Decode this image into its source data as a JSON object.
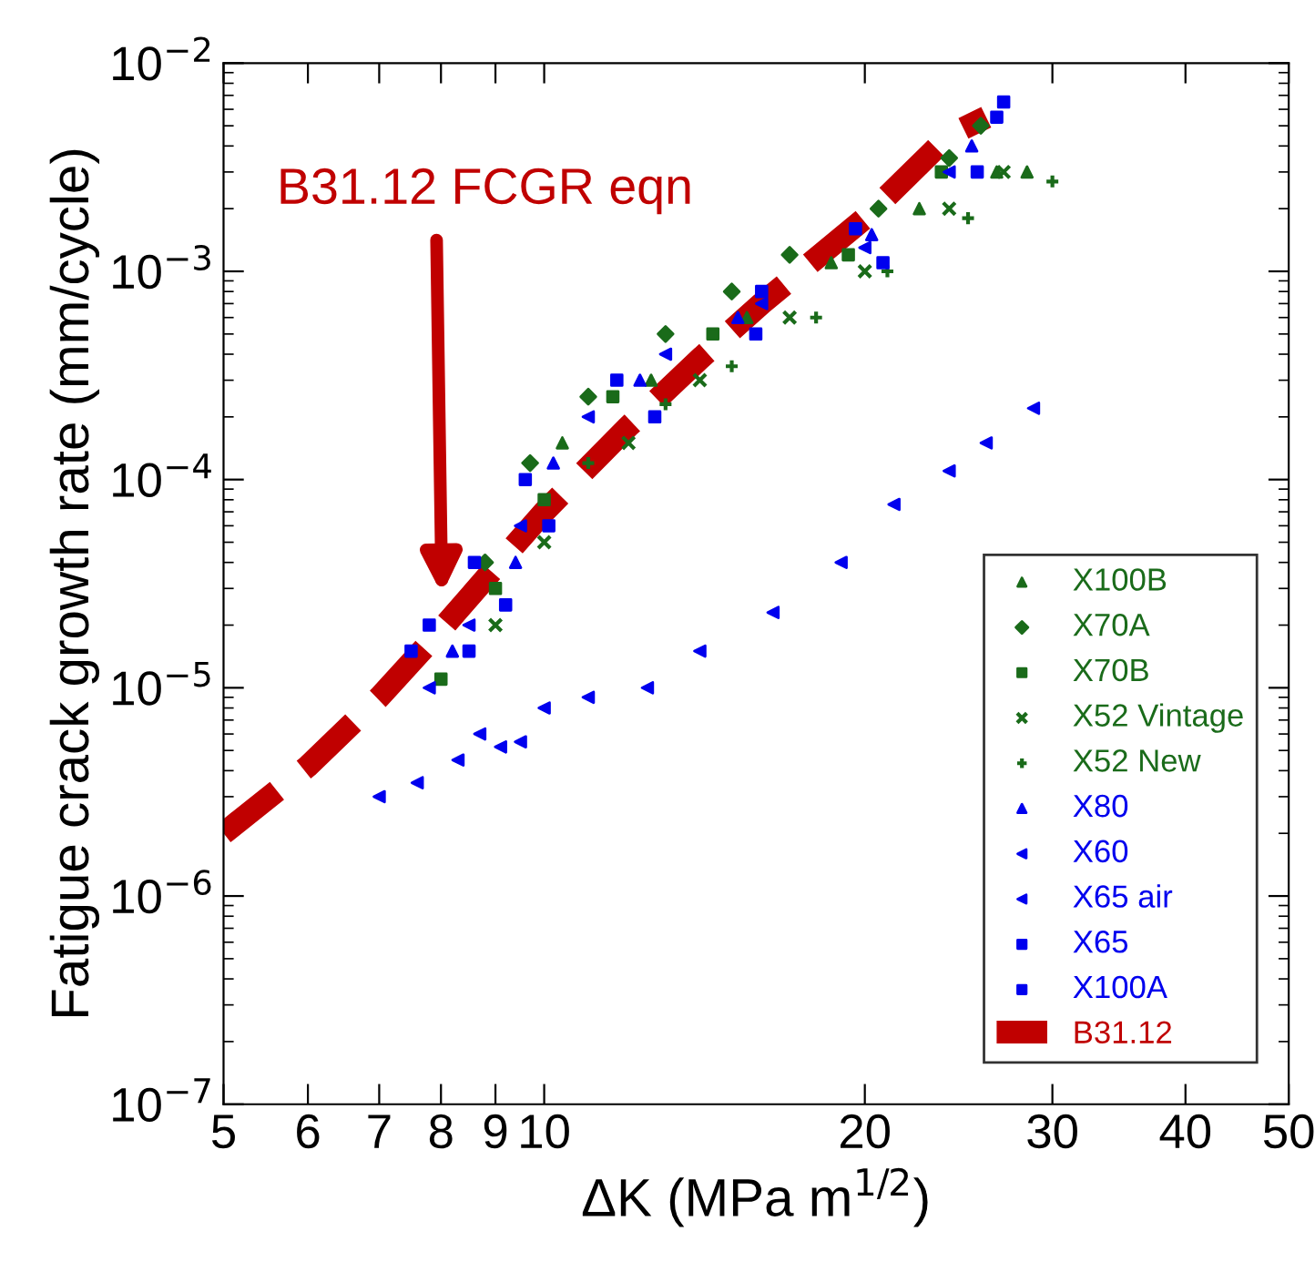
{
  "chart_data": {
    "type": "scatter",
    "xlabel": "ΔK (MPa m$^{1/2}$)",
    "ylabel": "Fatigue crack growth rate (mm/cycle)",
    "log": "xy",
    "xlim": [
      5,
      50
    ],
    "ylim": [
      1e-07,
      0.01
    ],
    "xticks": [
      5,
      6,
      7,
      8,
      9,
      10,
      20,
      30,
      40,
      50
    ],
    "yticks": [
      {
        "value": 1e-07,
        "label": "10$^{−7}$"
      },
      {
        "value": 1e-06,
        "label": "10$^{−6}$"
      },
      {
        "value": 1e-05,
        "label": "10$^{−5}$"
      },
      {
        "value": 0.0001,
        "label": "10$^{−4}$"
      },
      {
        "value": 0.001,
        "label": "10$^{−3}$"
      },
      {
        "value": 0.01,
        "label": "10$^{−2}$"
      }
    ],
    "grid": false,
    "legend": "bottom right",
    "annotations": [
      "B31.12 FCGR eqn"
    ],
    "series": [
      {
        "name": "X100B",
        "color": "#1a6b1a",
        "marker": "triangle",
        "x": [
          10.4,
          12.6,
          15.5,
          18.6,
          22.5,
          26.6,
          28.4
        ],
        "values": [
          0.00015,
          0.0003,
          0.0006,
          0.0011,
          0.002,
          0.003,
          0.003
        ]
      },
      {
        "name": "X70A",
        "color": "#1a6b1a",
        "marker": "diamond",
        "x": [
          8.8,
          9.7,
          11,
          13,
          15,
          17,
          20.6,
          24,
          25.7
        ],
        "values": [
          4e-05,
          0.00012,
          0.00025,
          0.0005,
          0.0008,
          0.0012,
          0.002,
          0.0035,
          0.005
        ]
      },
      {
        "name": "X70B",
        "color": "#1a6b1a",
        "marker": "square",
        "x": [
          8,
          9,
          10,
          11.6,
          14.4,
          19.3,
          23.6
        ],
        "values": [
          1.1e-05,
          3e-05,
          8e-05,
          0.00025,
          0.0005,
          0.0012,
          0.003
        ]
      },
      {
        "name": "X52 Vintage",
        "color": "#1a6b1a",
        "marker": "cross",
        "x": [
          9,
          10,
          12,
          14,
          17,
          20,
          24,
          27
        ],
        "values": [
          2e-05,
          5e-05,
          0.00015,
          0.0003,
          0.0006,
          0.001,
          0.002,
          0.003
        ]
      },
      {
        "name": "X52 New",
        "color": "#1a6b1a",
        "marker": "plus",
        "x": [
          11,
          13,
          15,
          18,
          21,
          25,
          30
        ],
        "values": [
          0.00012,
          0.00023,
          0.00035,
          0.0006,
          0.001,
          0.0018,
          0.0027
        ]
      },
      {
        "name": "X80",
        "color": "#0000ee",
        "marker": "triangle",
        "x": [
          8.2,
          9.4,
          10.2,
          12.3,
          15.2,
          20.3,
          25.2
        ],
        "values": [
          1.5e-05,
          4e-05,
          0.00012,
          0.0003,
          0.0006,
          0.0015,
          0.004
        ]
      },
      {
        "name": "X60",
        "color": "#0000ee",
        "marker": "triangle_left",
        "x": [
          7.8,
          8.5,
          9.5,
          11,
          13,
          16,
          20,
          24
        ],
        "values": [
          1e-05,
          2e-05,
          6e-05,
          0.0002,
          0.0004,
          0.0007,
          0.0013,
          0.003
        ]
      },
      {
        "name": "X65 air",
        "color": "#0000ee",
        "marker": "triangle_left",
        "x": [
          7,
          7.6,
          8.3,
          8.7,
          9.1,
          9.5,
          10,
          11,
          12.5,
          14,
          16.4,
          19,
          21.3,
          24,
          26,
          28.8
        ],
        "values": [
          3e-06,
          3.5e-06,
          4.5e-06,
          6e-06,
          5.2e-06,
          5.5e-06,
          8e-06,
          9e-06,
          1e-05,
          1.5e-05,
          2.3e-05,
          4e-05,
          7.6e-05,
          0.00011,
          0.00015,
          0.00022
        ]
      },
      {
        "name": "X65",
        "color": "#0000ee",
        "marker": "square",
        "x": [
          8.5,
          9.2,
          10.1,
          12.7,
          15.8,
          20.8,
          25.5,
          27
        ],
        "values": [
          1.5e-05,
          2.5e-05,
          6e-05,
          0.0002,
          0.0005,
          0.0011,
          0.003,
          0.0065
        ]
      },
      {
        "name": "X100A",
        "color": "#0000ee",
        "marker": "square",
        "x": [
          7.5,
          7.8,
          8.6,
          9.6,
          11.7,
          16,
          19.6,
          26.6
        ],
        "values": [
          1.5e-05,
          2e-05,
          4e-05,
          0.0001,
          0.0003,
          0.0008,
          0.0016,
          0.0055
        ]
      },
      {
        "name": "B31.12",
        "type": "line",
        "color": "#c00000",
        "line_style": "dashed",
        "x": [
          5,
          6,
          7,
          8,
          9,
          10,
          12,
          14,
          16,
          20,
          24,
          26
        ],
        "values": [
          2e-06,
          4.2e-06,
          9e-06,
          1.9e-05,
          3.8e-05,
          7e-05,
          0.00018,
          0.00038,
          0.0007,
          0.0018,
          0.0045,
          0.0055
        ]
      }
    ]
  }
}
